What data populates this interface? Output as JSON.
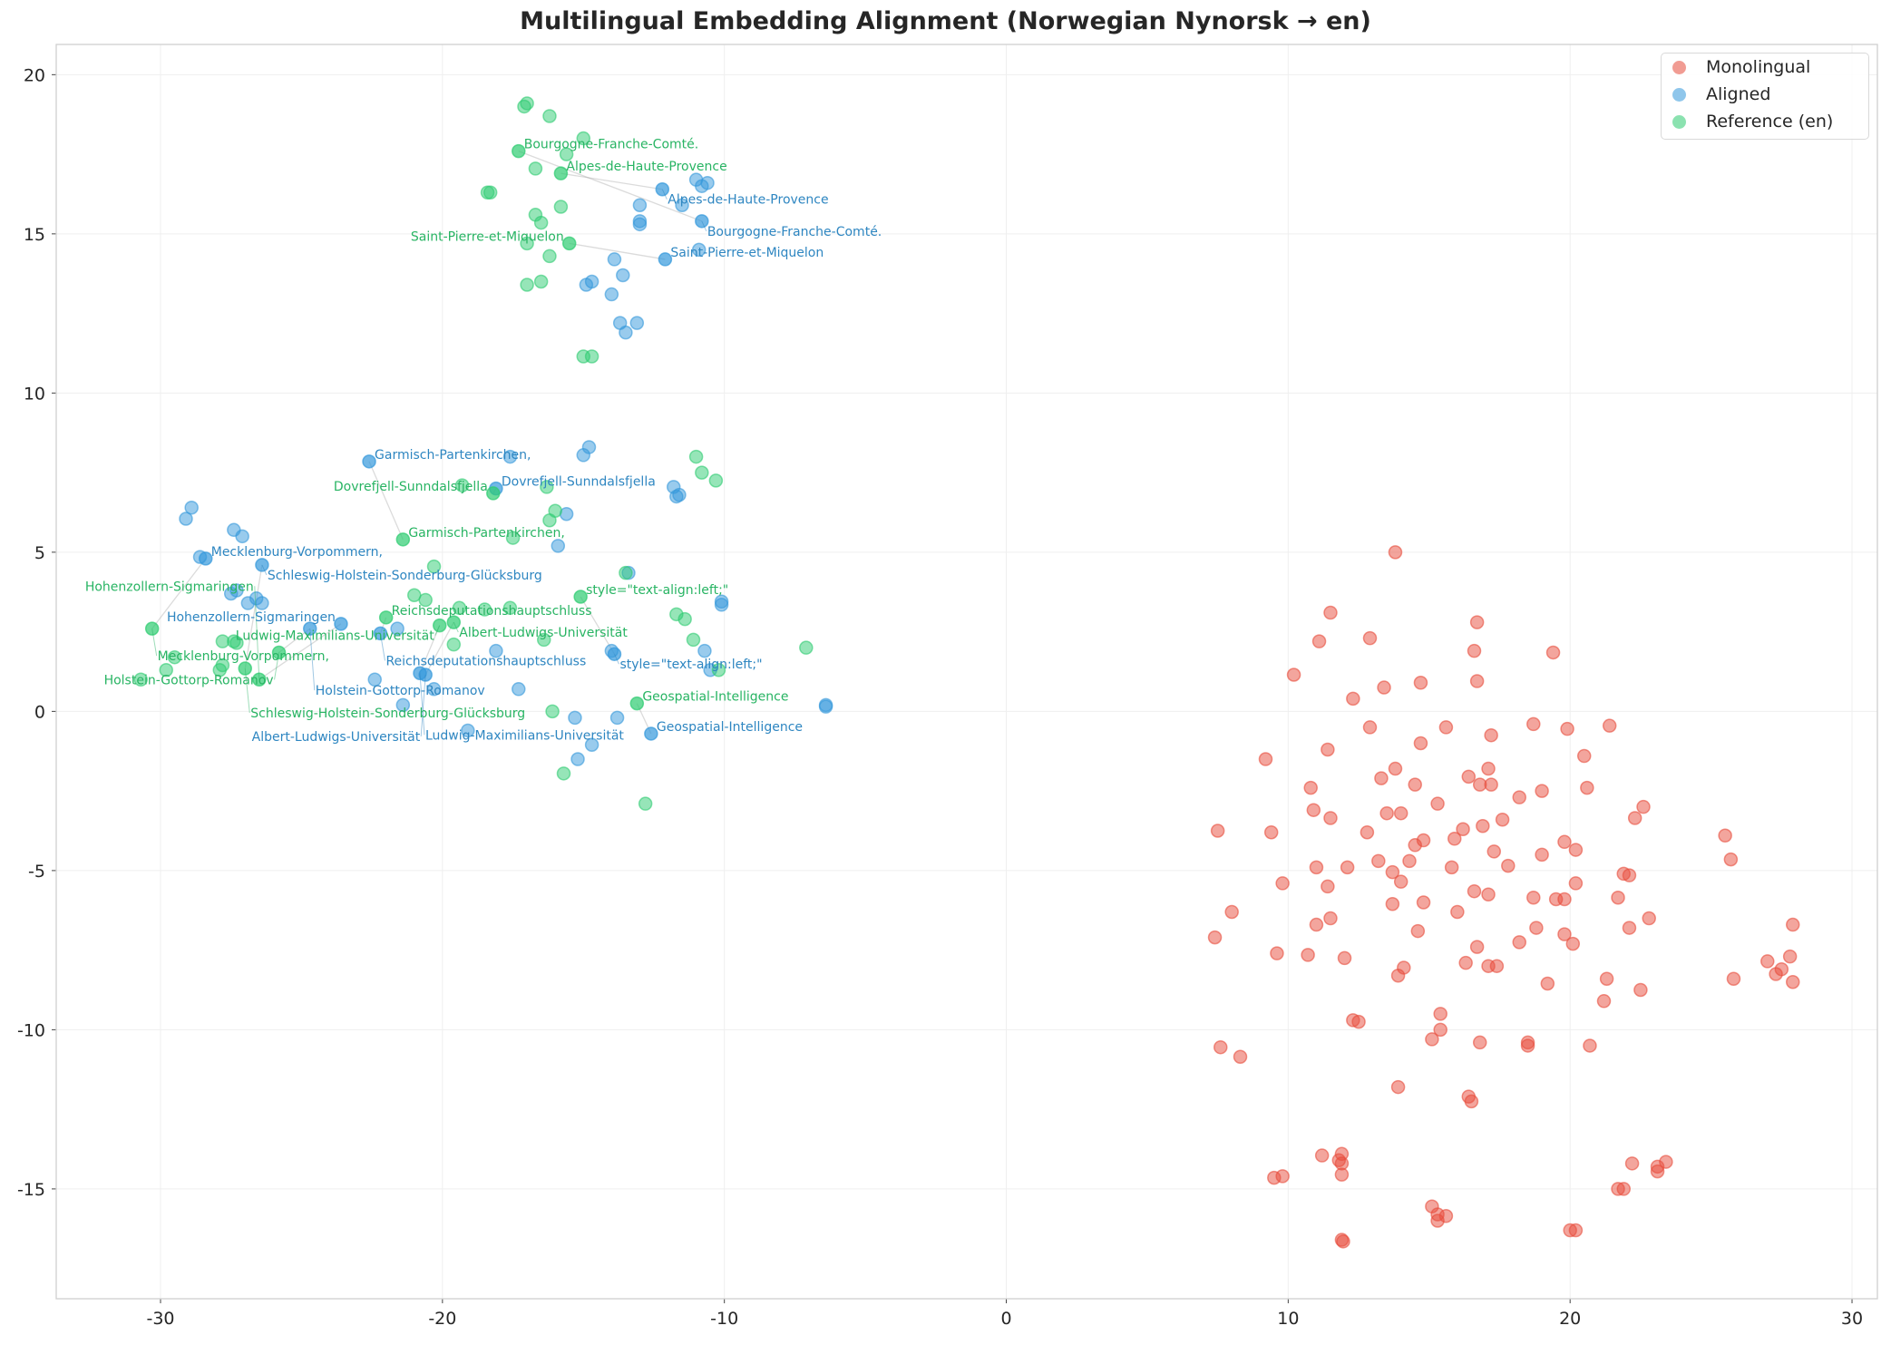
{
  "chart_data": {
    "type": "scatter",
    "title": "Multilingual Embedding Alignment (Norwegian Nynorsk → en)",
    "xlabel": "",
    "ylabel": "",
    "xlim": [
      -33.7,
      30.9
    ],
    "ylim": [
      -18.45,
      20.95
    ],
    "xticks": [
      -30,
      -20,
      -10,
      0,
      10,
      20,
      30
    ],
    "yticks": [
      -15,
      -10,
      -5,
      0,
      5,
      10,
      15,
      20
    ],
    "grid": true,
    "legend_position": "top-right",
    "series": [
      {
        "name": "Monolingual",
        "color": "#e74c3c",
        "points": [
          [
            13.8,
            5.0
          ],
          [
            11.5,
            3.1
          ],
          [
            12.9,
            2.3
          ],
          [
            16.7,
            2.8
          ],
          [
            11.1,
            2.2
          ],
          [
            16.6,
            1.9
          ],
          [
            19.4,
            1.85
          ],
          [
            10.2,
            1.15
          ],
          [
            16.7,
            0.95
          ],
          [
            14.7,
            0.9
          ],
          [
            13.4,
            0.75
          ],
          [
            12.3,
            0.4
          ],
          [
            21.4,
            -0.45
          ],
          [
            18.7,
            -0.4
          ],
          [
            19.9,
            -0.55
          ],
          [
            15.6,
            -0.5
          ],
          [
            12.9,
            -0.5
          ],
          [
            17.2,
            -0.75
          ],
          [
            14.7,
            -1.0
          ],
          [
            11.4,
            -1.2
          ],
          [
            9.2,
            -1.5
          ],
          [
            20.5,
            -1.4
          ],
          [
            13.8,
            -1.8
          ],
          [
            17.1,
            -1.8
          ],
          [
            16.4,
            -2.05
          ],
          [
            13.3,
            -2.1
          ],
          [
            14.5,
            -2.3
          ],
          [
            10.8,
            -2.4
          ],
          [
            17.2,
            -2.3
          ],
          [
            16.8,
            -2.3
          ],
          [
            20.6,
            -2.4
          ],
          [
            19.0,
            -2.5
          ],
          [
            18.2,
            -2.7
          ],
          [
            15.3,
            -2.9
          ],
          [
            22.6,
            -3.0
          ],
          [
            10.9,
            -3.1
          ],
          [
            13.5,
            -3.2
          ],
          [
            14.0,
            -3.2
          ],
          [
            11.5,
            -3.35
          ],
          [
            17.6,
            -3.4
          ],
          [
            22.3,
            -3.35
          ],
          [
            16.9,
            -3.6
          ],
          [
            16.2,
            -3.7
          ],
          [
            7.5,
            -3.75
          ],
          [
            9.4,
            -3.8
          ],
          [
            12.8,
            -3.8
          ],
          [
            25.5,
            -3.9
          ],
          [
            15.9,
            -4.0
          ],
          [
            14.8,
            -4.05
          ],
          [
            14.5,
            -4.2
          ],
          [
            19.8,
            -4.1
          ],
          [
            20.2,
            -4.35
          ],
          [
            17.3,
            -4.4
          ],
          [
            19.0,
            -4.5
          ],
          [
            14.3,
            -4.7
          ],
          [
            13.2,
            -4.7
          ],
          [
            25.7,
            -4.65
          ],
          [
            17.8,
            -4.85
          ],
          [
            11.0,
            -4.9
          ],
          [
            12.1,
            -4.9
          ],
          [
            15.8,
            -4.9
          ],
          [
            13.7,
            -5.05
          ],
          [
            21.9,
            -5.1
          ],
          [
            22.1,
            -5.15
          ],
          [
            9.8,
            -5.4
          ],
          [
            11.4,
            -5.5
          ],
          [
            20.2,
            -5.4
          ],
          [
            14.0,
            -5.35
          ],
          [
            16.6,
            -5.65
          ],
          [
            17.1,
            -5.75
          ],
          [
            14.8,
            -6.0
          ],
          [
            13.7,
            -6.05
          ],
          [
            18.7,
            -5.85
          ],
          [
            19.5,
            -5.9
          ],
          [
            19.8,
            -5.9
          ],
          [
            21.7,
            -5.85
          ],
          [
            8.0,
            -6.3
          ],
          [
            16.0,
            -6.3
          ],
          [
            11.5,
            -6.5
          ],
          [
            22.8,
            -6.5
          ],
          [
            22.1,
            -6.8
          ],
          [
            27.9,
            -6.7
          ],
          [
            11.0,
            -6.7
          ],
          [
            14.6,
            -6.9
          ],
          [
            18.8,
            -6.8
          ],
          [
            19.8,
            -7.0
          ],
          [
            7.4,
            -7.1
          ],
          [
            20.1,
            -7.3
          ],
          [
            18.2,
            -7.25
          ],
          [
            16.7,
            -7.4
          ],
          [
            9.6,
            -7.6
          ],
          [
            10.7,
            -7.65
          ],
          [
            12.0,
            -7.75
          ],
          [
            27.0,
            -7.85
          ],
          [
            27.8,
            -7.7
          ],
          [
            16.3,
            -7.9
          ],
          [
            17.1,
            -8.0
          ],
          [
            17.4,
            -8.0
          ],
          [
            14.1,
            -8.05
          ],
          [
            27.5,
            -8.1
          ],
          [
            27.3,
            -8.25
          ],
          [
            13.9,
            -8.3
          ],
          [
            21.3,
            -8.4
          ],
          [
            25.8,
            -8.4
          ],
          [
            27.9,
            -8.5
          ],
          [
            19.2,
            -8.55
          ],
          [
            22.5,
            -8.75
          ],
          [
            21.2,
            -9.1
          ],
          [
            15.4,
            -9.5
          ],
          [
            12.3,
            -9.7
          ],
          [
            12.5,
            -9.75
          ],
          [
            15.4,
            -10.0
          ],
          [
            15.1,
            -10.3
          ],
          [
            16.8,
            -10.4
          ],
          [
            18.5,
            -10.4
          ],
          [
            18.5,
            -10.5
          ],
          [
            20.7,
            -10.5
          ],
          [
            7.6,
            -10.55
          ],
          [
            8.3,
            -10.85
          ],
          [
            13.9,
            -11.8
          ],
          [
            16.4,
            -12.1
          ],
          [
            16.5,
            -12.25
          ],
          [
            11.2,
            -13.95
          ],
          [
            11.9,
            -13.9
          ],
          [
            11.8,
            -14.1
          ],
          [
            11.9,
            -14.2
          ],
          [
            22.2,
            -14.2
          ],
          [
            23.1,
            -14.3
          ],
          [
            23.4,
            -14.15
          ],
          [
            23.1,
            -14.45
          ],
          [
            9.5,
            -14.65
          ],
          [
            9.8,
            -14.6
          ],
          [
            11.9,
            -14.55
          ],
          [
            21.7,
            -15.0
          ],
          [
            21.9,
            -15.0
          ],
          [
            15.1,
            -15.55
          ],
          [
            15.3,
            -15.8
          ],
          [
            15.3,
            -16.0
          ],
          [
            15.6,
            -15.85
          ],
          [
            20.0,
            -16.3
          ],
          [
            20.2,
            -16.3
          ],
          [
            11.9,
            -16.6
          ],
          [
            11.95,
            -16.65
          ]
        ]
      },
      {
        "name": "Aligned",
        "color": "#3498db",
        "points": [
          [
            -29.1,
            6.05
          ],
          [
            -28.9,
            6.4
          ],
          [
            -27.4,
            5.7
          ],
          [
            -27.1,
            5.5
          ],
          [
            -28.6,
            4.85
          ],
          [
            -27.3,
            3.8
          ],
          [
            -27.5,
            3.7
          ],
          [
            -26.6,
            3.55
          ],
          [
            -26.4,
            3.4
          ],
          [
            -26.9,
            3.4
          ],
          [
            -22.4,
            1.0
          ],
          [
            -21.4,
            0.2
          ],
          [
            -20.3,
            0.7
          ],
          [
            -19.1,
            -0.6
          ],
          [
            -18.1,
            1.9
          ],
          [
            -17.3,
            0.7
          ],
          [
            -21.6,
            2.6
          ],
          [
            -17.6,
            8.0
          ],
          [
            -14.8,
            8.3
          ],
          [
            -15.0,
            8.05
          ],
          [
            -11.8,
            7.05
          ],
          [
            -11.6,
            6.8
          ],
          [
            -11.7,
            6.75
          ],
          [
            -15.6,
            6.2
          ],
          [
            -15.9,
            5.2
          ],
          [
            -13.4,
            4.35
          ],
          [
            -10.1,
            3.35
          ],
          [
            -10.1,
            3.45
          ],
          [
            -10.7,
            1.9
          ],
          [
            -10.5,
            1.3
          ],
          [
            -15.3,
            -0.2
          ],
          [
            -13.8,
            -0.2
          ],
          [
            -14.7,
            -1.05
          ],
          [
            -15.2,
            -1.5
          ],
          [
            -14.0,
            1.9
          ],
          [
            -6.4,
            0.2
          ],
          [
            -6.4,
            0.15
          ],
          [
            -11.0,
            16.7
          ],
          [
            -10.6,
            16.6
          ],
          [
            -10.8,
            16.5
          ],
          [
            -11.5,
            15.9
          ],
          [
            -13.0,
            15.9
          ],
          [
            -13.0,
            15.4
          ],
          [
            -13.0,
            15.3
          ],
          [
            -10.9,
            14.5
          ],
          [
            -13.9,
            14.2
          ],
          [
            -13.6,
            13.7
          ],
          [
            -14.7,
            13.5
          ],
          [
            -14.9,
            13.4
          ],
          [
            -14.0,
            13.1
          ],
          [
            -13.7,
            12.2
          ],
          [
            -13.1,
            12.2
          ],
          [
            -13.5,
            11.9
          ]
        ]
      },
      {
        "name": "Reference (en)",
        "color": "#2ecc71",
        "points": [
          [
            -17.0,
            19.1
          ],
          [
            -17.1,
            19.0
          ],
          [
            -16.2,
            18.7
          ],
          [
            -15.0,
            18.0
          ],
          [
            -15.6,
            17.5
          ],
          [
            -16.7,
            17.05
          ],
          [
            -18.4,
            16.3
          ],
          [
            -18.3,
            16.3
          ],
          [
            -15.8,
            15.85
          ],
          [
            -16.7,
            15.6
          ],
          [
            -16.5,
            15.35
          ],
          [
            -17.0,
            14.7
          ],
          [
            -16.2,
            14.3
          ],
          [
            -16.5,
            13.5
          ],
          [
            -17.0,
            13.4
          ],
          [
            -15.0,
            11.15
          ],
          [
            -14.7,
            11.15
          ],
          [
            -19.3,
            7.1
          ],
          [
            -11.0,
            8.0
          ],
          [
            -10.8,
            7.5
          ],
          [
            -10.3,
            7.25
          ],
          [
            -16.3,
            7.05
          ],
          [
            -16.0,
            6.3
          ],
          [
            -16.2,
            6.0
          ],
          [
            -17.5,
            5.45
          ],
          [
            -20.3,
            4.55
          ],
          [
            -13.5,
            4.35
          ],
          [
            -21.0,
            3.65
          ],
          [
            -20.6,
            3.5
          ],
          [
            -19.4,
            3.25
          ],
          [
            -18.5,
            3.2
          ],
          [
            -17.6,
            3.25
          ],
          [
            -11.7,
            3.05
          ],
          [
            -11.4,
            2.9
          ],
          [
            -11.1,
            2.25
          ],
          [
            -16.4,
            2.25
          ],
          [
            -19.6,
            2.1
          ],
          [
            -7.1,
            2.0
          ],
          [
            -10.2,
            1.3
          ],
          [
            -16.1,
            0.0
          ],
          [
            -15.7,
            -1.95
          ],
          [
            -12.8,
            -2.9
          ],
          [
            -30.7,
            1.0
          ],
          [
            -29.8,
            1.3
          ],
          [
            -29.5,
            1.7
          ],
          [
            -27.9,
            1.3
          ],
          [
            -27.8,
            1.45
          ],
          [
            -27.8,
            2.2
          ],
          [
            -27.4,
            2.2
          ],
          [
            -27.3,
            2.15
          ]
        ]
      }
    ],
    "annotations": [
      {
        "series": "Reference (en)",
        "text": "Bourgogne-Franche-Comté.",
        "x": -17.3,
        "y": 17.6
      },
      {
        "series": "Reference (en)",
        "text": "Alpes-de-Haute-Provence",
        "x": -15.8,
        "y": 16.9
      },
      {
        "series": "Reference (en)",
        "text": "Saint-Pierre-et-Miquelon",
        "x": -15.5,
        "y": 14.7
      },
      {
        "series": "Reference (en)",
        "text": "Garmisch-Partenkirchen,",
        "x": -21.4,
        "y": 5.4
      },
      {
        "series": "Reference (en)",
        "text": "Dovrefjell-Sunndalsfjella",
        "x": -18.2,
        "y": 6.85
      },
      {
        "series": "Reference (en)",
        "text": "style=\"text-align:left;\"",
        "x": -15.1,
        "y": 3.6
      },
      {
        "series": "Reference (en)",
        "text": "Geospatial-Intelligence",
        "x": -13.1,
        "y": 0.25
      },
      {
        "series": "Reference (en)",
        "text": "Mecklenburg-Vorpommern,",
        "x": -30.3,
        "y": 2.6
      },
      {
        "series": "Reference (en)",
        "text": "Holstein-Gottorp-Romanov",
        "x": -25.8,
        "y": 1.85
      },
      {
        "series": "Reference (en)",
        "text": "Schleswig-Holstein-Sonderburg-Glücksburg",
        "x": -27.0,
        "y": 1.35
      },
      {
        "series": "Reference (en)",
        "text": "Hohenzollern-Sigmaringen",
        "x": -26.5,
        "y": 1.0
      },
      {
        "series": "Reference (en)",
        "text": "Reichsdeputationshauptschluss",
        "x": -22.0,
        "y": 2.95
      },
      {
        "series": "Reference (en)",
        "text": "Ludwig-Maximilians-Universität",
        "x": -20.1,
        "y": 2.7
      },
      {
        "series": "Reference (en)",
        "text": "Albert-Ludwigs-Universität",
        "x": -19.6,
        "y": 2.8
      },
      {
        "series": "Aligned",
        "text": "Alpes-de-Haute-Provence",
        "x": -12.2,
        "y": 16.4
      },
      {
        "series": "Aligned",
        "text": "Bourgogne-Franche-Comté.",
        "x": -10.8,
        "y": 15.4
      },
      {
        "series": "Aligned",
        "text": "Saint-Pierre-et-Miquelon",
        "x": -12.1,
        "y": 14.2
      },
      {
        "series": "Aligned",
        "text": "Garmisch-Partenkirchen,",
        "x": -22.6,
        "y": 7.85
      },
      {
        "series": "Aligned",
        "text": "Dovrefjell-Sunndalsfjella",
        "x": -18.1,
        "y": 7.0
      },
      {
        "series": "Aligned",
        "text": "Mecklenburg-Vorpommern,",
        "x": -28.4,
        "y": 4.8
      },
      {
        "series": "Aligned",
        "text": "Schleswig-Holstein-Sonderburg-Glücksburg",
        "x": -26.4,
        "y": 4.6
      },
      {
        "series": "Aligned",
        "text": "Hohenzollern-Sigmaringen",
        "x": -23.6,
        "y": 2.75
      },
      {
        "series": "Aligned",
        "text": "Holstein-Gottorp-Romanov",
        "x": -24.7,
        "y": 2.6
      },
      {
        "series": "Aligned",
        "text": "Reichsdeputationshauptschluss",
        "x": -22.2,
        "y": 2.45
      },
      {
        "series": "Aligned",
        "text": "Ludwig-Maximilians-Universität",
        "x": -20.8,
        "y": 1.2
      },
      {
        "series": "Aligned",
        "text": "Albert-Ludwigs-Universität",
        "x": -20.6,
        "y": 1.15
      },
      {
        "series": "Aligned",
        "text": "style=\"text-align:left;\"",
        "x": -13.9,
        "y": 1.8
      },
      {
        "series": "Aligned",
        "text": "Geospatial-Intelligence",
        "x": -12.6,
        "y": -0.7
      }
    ],
    "annotation_colors": {
      "Aligned": "#2e86c1",
      "Reference (en)": "#28b463"
    }
  }
}
